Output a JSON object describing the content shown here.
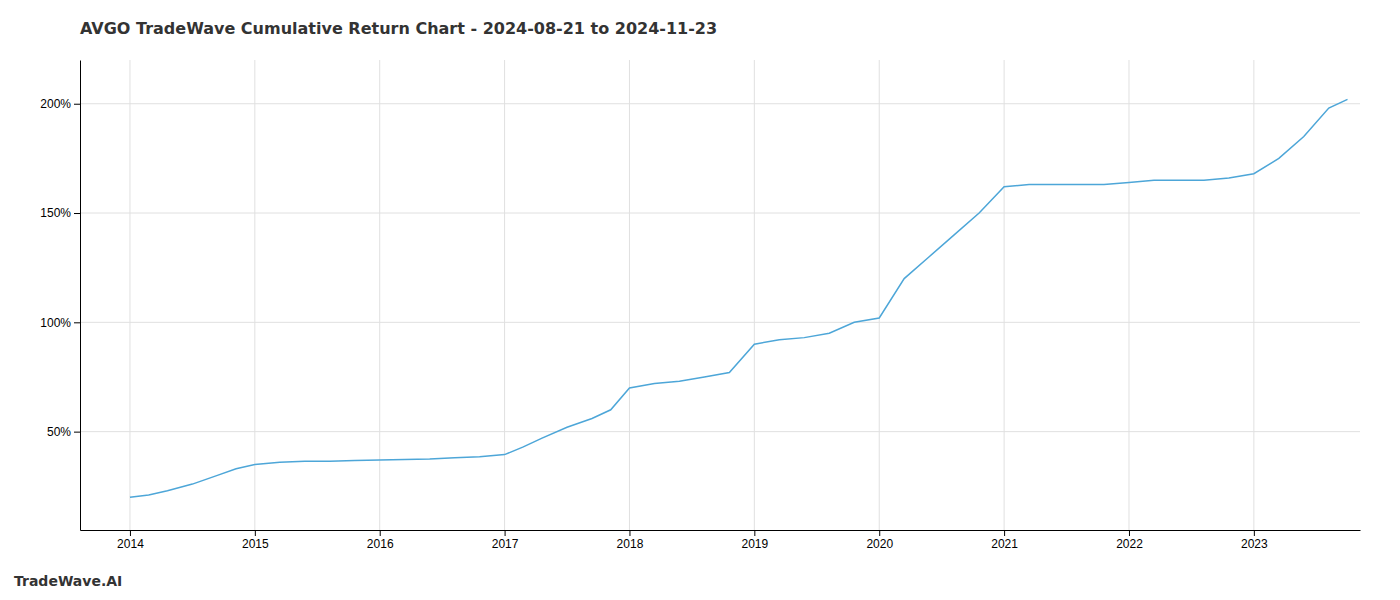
{
  "chart_data": {
    "type": "line",
    "title": "AVGO TradeWave Cumulative Return Chart - 2024-08-21 to 2024-11-23",
    "annotations": [
      "TradeWave.AI"
    ],
    "x": [
      2014.0,
      2014.15,
      2014.3,
      2014.5,
      2014.7,
      2014.85,
      2015.0,
      2015.2,
      2015.4,
      2015.6,
      2015.8,
      2016.0,
      2016.2,
      2016.4,
      2016.6,
      2016.8,
      2017.0,
      2017.15,
      2017.3,
      2017.5,
      2017.7,
      2017.85,
      2018.0,
      2018.2,
      2018.4,
      2018.6,
      2018.8,
      2019.0,
      2019.2,
      2019.4,
      2019.6,
      2019.8,
      2020.0,
      2020.2,
      2020.4,
      2020.6,
      2020.8,
      2021.0,
      2021.2,
      2021.4,
      2021.6,
      2021.8,
      2022.0,
      2022.2,
      2022.4,
      2022.6,
      2022.8,
      2023.0,
      2023.2,
      2023.4,
      2023.6,
      2023.75
    ],
    "values": [
      20,
      21,
      23,
      26,
      30,
      33,
      35,
      36,
      36.5,
      36.5,
      36.8,
      37,
      37.3,
      37.5,
      38,
      38.5,
      39.5,
      43,
      47,
      52,
      56,
      60,
      70,
      72,
      73,
      75,
      77,
      90,
      92,
      93,
      95,
      100,
      102,
      120,
      130,
      140,
      150,
      162,
      163,
      163,
      163,
      163,
      164,
      165,
      165,
      165,
      166,
      168,
      175,
      185,
      198,
      202
    ],
    "color": "#4da6d8",
    "xlim": [
      2013.6,
      2023.85
    ],
    "xticks": [
      2014,
      2015,
      2016,
      2017,
      2018,
      2019,
      2020,
      2021,
      2022,
      2023
    ],
    "ylim": [
      5,
      220
    ],
    "yticks": [
      {
        "value": 50,
        "label": "50%"
      },
      {
        "value": 100,
        "label": "100%"
      },
      {
        "value": 150,
        "label": "150%"
      },
      {
        "value": 200,
        "label": "200%"
      }
    ],
    "grid": true
  }
}
